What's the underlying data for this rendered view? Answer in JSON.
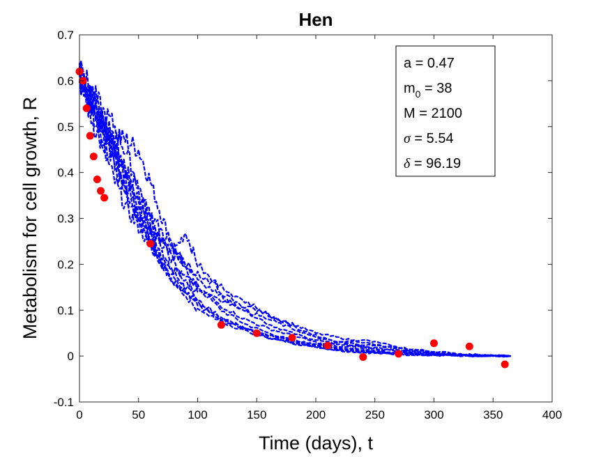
{
  "chart_data": {
    "type": "scatter",
    "title": "Hen",
    "xlabel": "Time (days), t",
    "ylabel": "Metabolism for cell growth, R",
    "xlim": [
      0,
      400
    ],
    "ylim": [
      -0.1,
      0.7
    ],
    "xticks": [
      "0",
      "50",
      "100",
      "150",
      "200",
      "250",
      "300",
      "350",
      "400"
    ],
    "yticks": [
      "-0.1",
      "0",
      "0.1",
      "0.2",
      "0.3",
      "0.4",
      "0.5",
      "0.6",
      "0.7"
    ],
    "grid": false,
    "legend_placement": "top-right",
    "colors": {
      "simulations": "#0000ff",
      "observed": "#ff0000"
    },
    "parameters": [
      {
        "symbol": "a",
        "sub": "",
        "value": "0.47",
        "italic": false
      },
      {
        "symbol": "m",
        "sub": "0",
        "value": "38",
        "italic": false
      },
      {
        "symbol": "M",
        "sub": "",
        "value": "2100",
        "italic": false
      },
      {
        "symbol": "σ",
        "sub": "",
        "value": "5.54",
        "italic": true
      },
      {
        "symbol": "δ",
        "sub": "",
        "value": "96.19",
        "italic": true
      }
    ],
    "observed": {
      "x": [
        0,
        3,
        6,
        9,
        12,
        15,
        18,
        21,
        60,
        120,
        150,
        180,
        210,
        240,
        270,
        300,
        330,
        360
      ],
      "y": [
        0.62,
        0.6,
        0.54,
        0.48,
        0.435,
        0.385,
        0.36,
        0.345,
        0.245,
        0.068,
        0.05,
        0.04,
        0.023,
        -0.002,
        0.005,
        0.028,
        0.021,
        -0.018
      ]
    },
    "simulations": [
      {
        "x": [
          0,
          10,
          20,
          30,
          40,
          50,
          60,
          70,
          80,
          90,
          100,
          120,
          140,
          160,
          180,
          200,
          220,
          240,
          260,
          280,
          300,
          320,
          340,
          365
        ],
        "y": [
          0.62,
          0.56,
          0.5,
          0.46,
          0.4,
          0.34,
          0.28,
          0.22,
          0.18,
          0.15,
          0.12,
          0.08,
          0.06,
          0.04,
          0.028,
          0.02,
          0.012,
          0.008,
          0.005,
          0.003,
          0.002,
          0.001,
          0.001,
          0.0
        ]
      },
      {
        "x": [
          0,
          10,
          20,
          30,
          40,
          50,
          60,
          70,
          80,
          90,
          100,
          120,
          140,
          160,
          180,
          200,
          220,
          240,
          260,
          280,
          300,
          320,
          340,
          365
        ],
        "y": [
          0.63,
          0.55,
          0.5,
          0.48,
          0.47,
          0.45,
          0.38,
          0.3,
          0.24,
          0.19,
          0.15,
          0.1,
          0.07,
          0.05,
          0.035,
          0.025,
          0.018,
          0.012,
          0.008,
          0.005,
          0.004,
          0.002,
          0.001,
          0.0
        ]
      },
      {
        "x": [
          0,
          10,
          20,
          30,
          40,
          50,
          60,
          70,
          80,
          90,
          100,
          120,
          140,
          160,
          180,
          200,
          220,
          240,
          260,
          280,
          300,
          320,
          340,
          365
        ],
        "y": [
          0.64,
          0.57,
          0.52,
          0.45,
          0.38,
          0.32,
          0.27,
          0.24,
          0.23,
          0.27,
          0.2,
          0.14,
          0.1,
          0.07,
          0.05,
          0.035,
          0.025,
          0.02,
          0.015,
          0.01,
          0.006,
          0.003,
          0.002,
          0.0
        ]
      },
      {
        "x": [
          0,
          10,
          20,
          30,
          40,
          50,
          60,
          70,
          80,
          90,
          100,
          120,
          140,
          160,
          180,
          200,
          220,
          240,
          260,
          280,
          300,
          320,
          340,
          365
        ],
        "y": [
          0.61,
          0.52,
          0.45,
          0.38,
          0.32,
          0.28,
          0.24,
          0.2,
          0.17,
          0.14,
          0.12,
          0.085,
          0.06,
          0.045,
          0.032,
          0.022,
          0.015,
          0.01,
          0.007,
          0.005,
          0.003,
          0.002,
          0.001,
          0.0
        ]
      },
      {
        "x": [
          0,
          10,
          20,
          30,
          40,
          50,
          60,
          70,
          80,
          90,
          100,
          120,
          140,
          160,
          180,
          200,
          220,
          240,
          260,
          280,
          300,
          320,
          340,
          365
        ],
        "y": [
          0.62,
          0.58,
          0.53,
          0.5,
          0.44,
          0.37,
          0.3,
          0.25,
          0.2,
          0.16,
          0.14,
          0.12,
          0.11,
          0.09,
          0.07,
          0.05,
          0.04,
          0.03,
          0.02,
          0.015,
          0.01,
          0.005,
          0.002,
          0.0
        ]
      },
      {
        "x": [
          0,
          10,
          20,
          30,
          40,
          50,
          60,
          70,
          80,
          90,
          100,
          120,
          140,
          160,
          180,
          200,
          220,
          240,
          260,
          280,
          300,
          320,
          340,
          365
        ],
        "y": [
          0.6,
          0.53,
          0.48,
          0.42,
          0.35,
          0.3,
          0.26,
          0.22,
          0.19,
          0.17,
          0.15,
          0.11,
          0.08,
          0.06,
          0.045,
          0.03,
          0.02,
          0.015,
          0.01,
          0.006,
          0.004,
          0.002,
          0.001,
          0.0
        ]
      },
      {
        "x": [
          0,
          10,
          20,
          30,
          40,
          50,
          60,
          70,
          80,
          90,
          100,
          120,
          140,
          160,
          180,
          200,
          220,
          240,
          260,
          280,
          300,
          320,
          340,
          365
        ],
        "y": [
          0.63,
          0.56,
          0.5,
          0.44,
          0.37,
          0.31,
          0.26,
          0.2,
          0.16,
          0.13,
          0.1,
          0.075,
          0.055,
          0.04,
          0.03,
          0.02,
          0.013,
          0.009,
          0.006,
          0.004,
          0.002,
          0.001,
          0.0,
          0.0
        ]
      },
      {
        "x": [
          0,
          10,
          20,
          30,
          40,
          50,
          60,
          70,
          80,
          90,
          100,
          120,
          140,
          160,
          180,
          200,
          220,
          240,
          260,
          280,
          300,
          320,
          340,
          365
        ],
        "y": [
          0.62,
          0.55,
          0.5,
          0.46,
          0.41,
          0.36,
          0.31,
          0.27,
          0.23,
          0.2,
          0.17,
          0.13,
          0.1,
          0.08,
          0.06,
          0.04,
          0.03,
          0.025,
          0.02,
          0.013,
          0.008,
          0.004,
          0.002,
          0.0
        ]
      },
      {
        "x": [
          0,
          10,
          20,
          30,
          40,
          50,
          60,
          70,
          80,
          90,
          100,
          120,
          140,
          160,
          180,
          200,
          220,
          240,
          260,
          280,
          300,
          320,
          340,
          365
        ],
        "y": [
          0.61,
          0.54,
          0.47,
          0.41,
          0.35,
          0.29,
          0.24,
          0.2,
          0.16,
          0.14,
          0.11,
          0.08,
          0.06,
          0.045,
          0.035,
          0.025,
          0.03,
          0.035,
          0.025,
          0.015,
          0.008,
          0.004,
          0.002,
          0.0
        ]
      },
      {
        "x": [
          0,
          10,
          20,
          30,
          40,
          50,
          60,
          70,
          80,
          90,
          100,
          120,
          140,
          160,
          180,
          200,
          220,
          240,
          260,
          280,
          300,
          320,
          340,
          365
        ],
        "y": [
          0.62,
          0.57,
          0.51,
          0.45,
          0.39,
          0.33,
          0.28,
          0.25,
          0.22,
          0.2,
          0.18,
          0.15,
          0.12,
          0.09,
          0.065,
          0.045,
          0.03,
          0.02,
          0.013,
          0.008,
          0.005,
          0.003,
          0.001,
          0.0
        ]
      }
    ]
  }
}
